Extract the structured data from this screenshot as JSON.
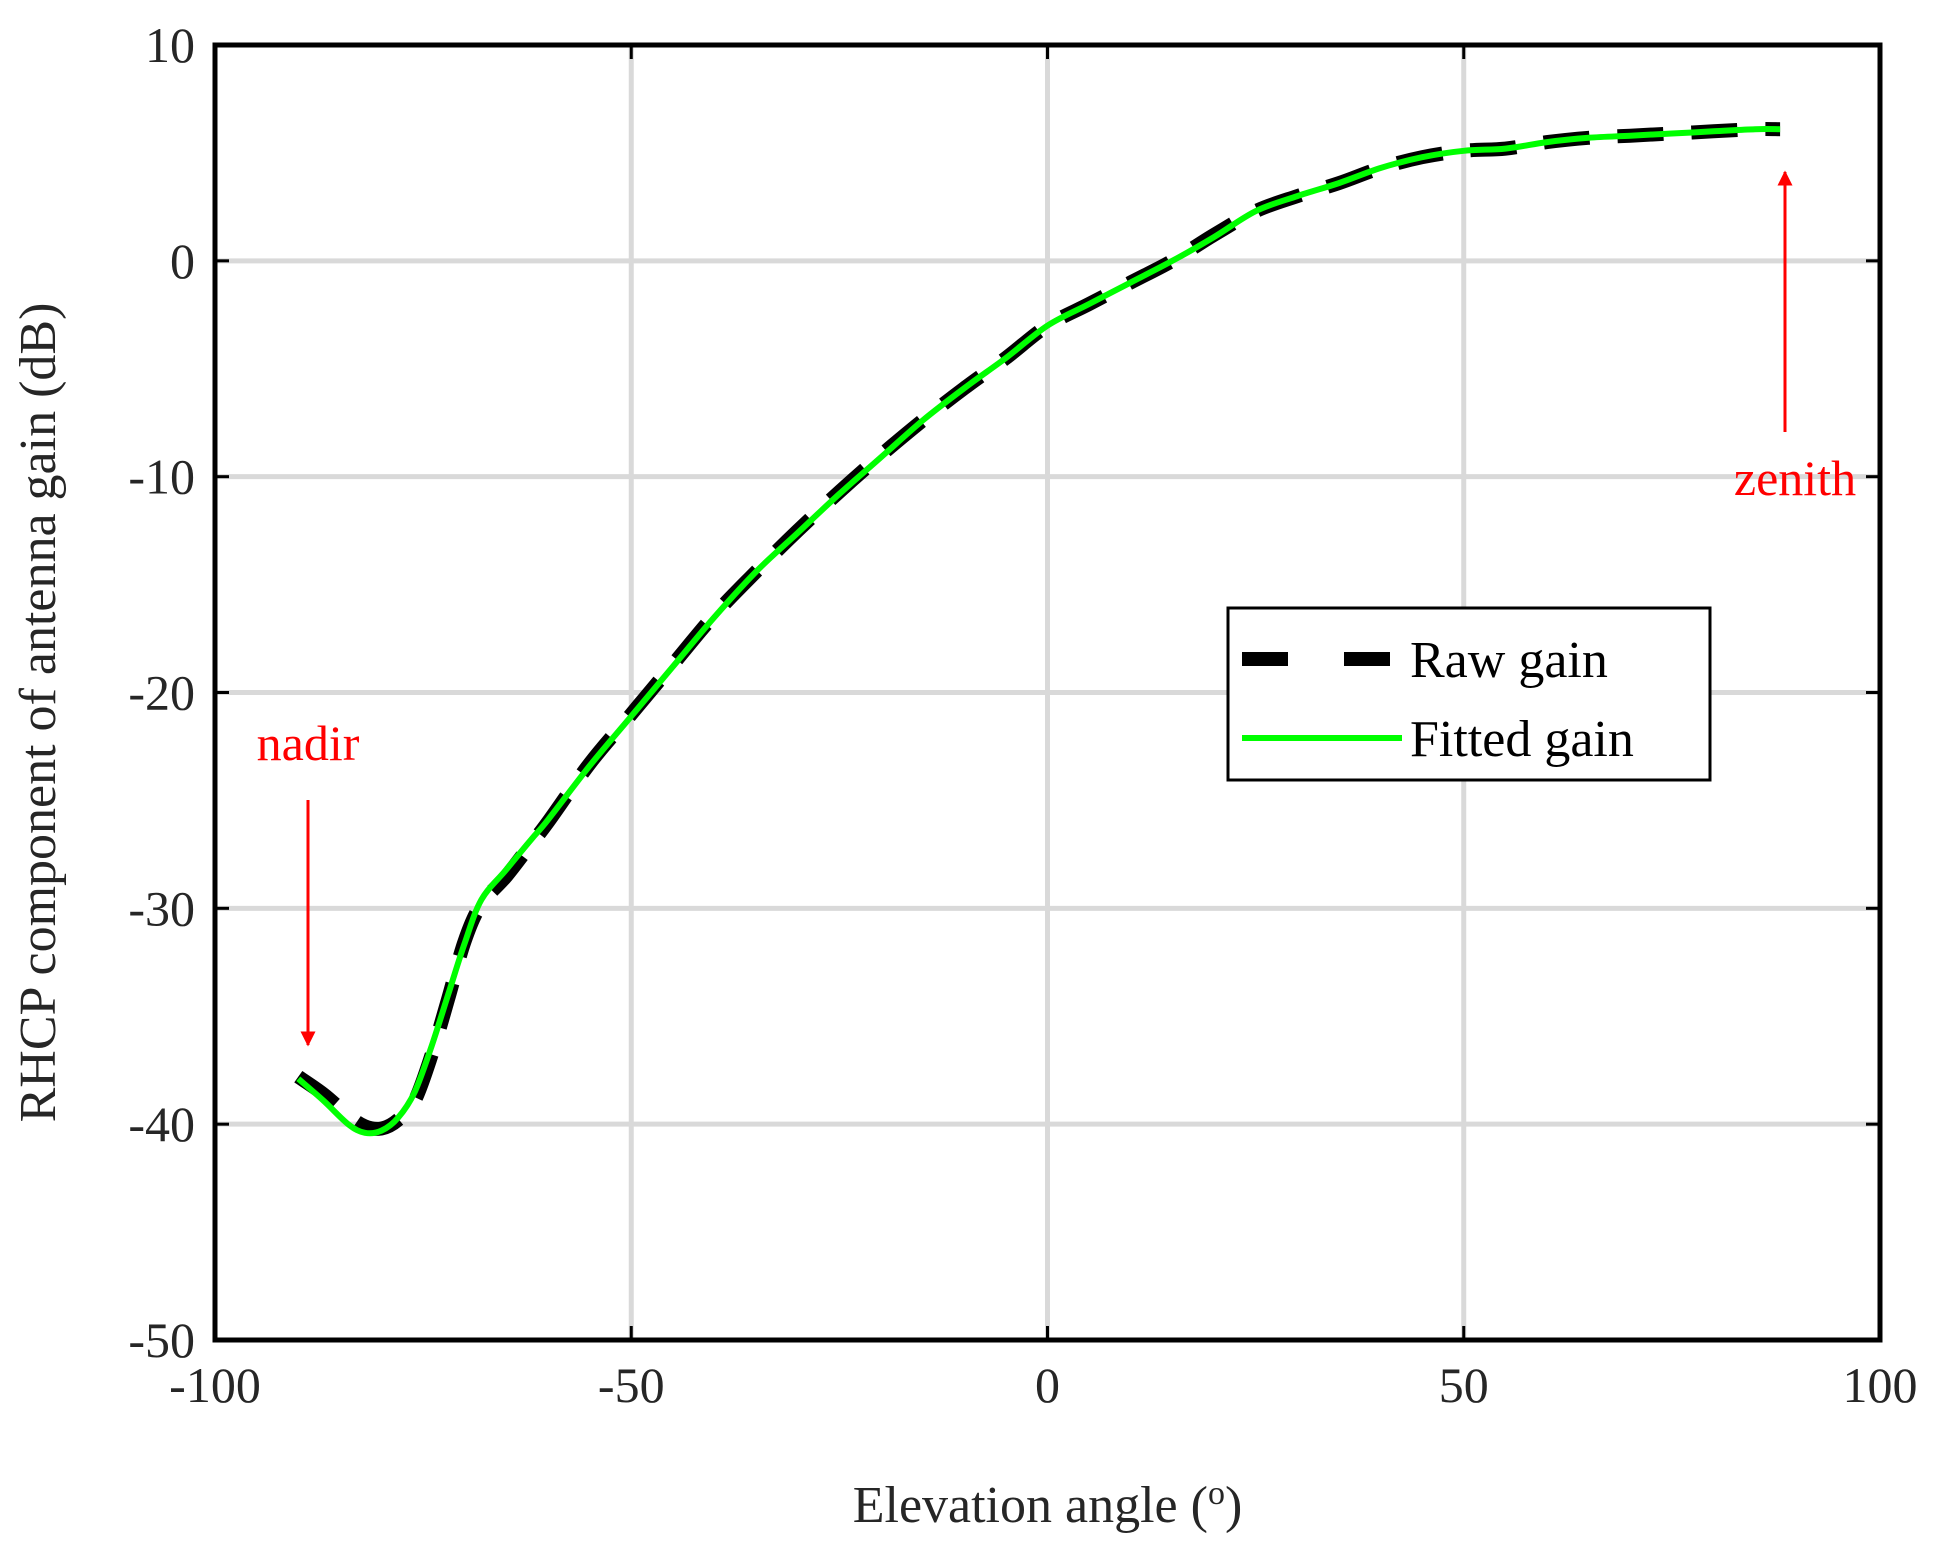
{
  "chart_data": {
    "type": "line",
    "xlabel": "Elevation angle (",
    "xlabel_sup": "o",
    "xlabel_end": ")",
    "ylabel": "RHCP component of antenna gain (dB)",
    "xlim": [
      -100,
      100
    ],
    "ylim": [
      -50,
      10
    ],
    "xticks": [
      -100,
      -50,
      0,
      50,
      100
    ],
    "yticks": [
      -50,
      -40,
      -30,
      -20,
      -10,
      0,
      10
    ],
    "xtick_labels": [
      "-100",
      "-50",
      "0",
      "50",
      "100"
    ],
    "ytick_labels": [
      "-50",
      "-40",
      "-30",
      "-20",
      "-10",
      "0",
      "10"
    ],
    "grid": true,
    "legend_position": "right-middle",
    "series": [
      {
        "name": "Raw gain",
        "style": "dashed",
        "color": "#000000",
        "x": [
          -90,
          -87,
          -84,
          -82,
          -80,
          -78,
          -76,
          -74,
          -72,
          -70,
          -68,
          -65,
          -62,
          -60,
          -55,
          -50,
          -45,
          -40,
          -35,
          -30,
          -25,
          -20,
          -15,
          -10,
          -5,
          0,
          5,
          10,
          15,
          20,
          25,
          30,
          35,
          40,
          45,
          50,
          55,
          60,
          65,
          70,
          75,
          80,
          85,
          88
        ],
        "y": [
          -37.8,
          -38.6,
          -39.6,
          -40.1,
          -40.2,
          -39.8,
          -38.9,
          -36.8,
          -34.2,
          -31.5,
          -29.8,
          -28.5,
          -27.0,
          -26.0,
          -23.3,
          -21.0,
          -18.7,
          -16.4,
          -14.4,
          -12.5,
          -10.7,
          -9.0,
          -7.4,
          -5.9,
          -4.5,
          -3.0,
          -2.0,
          -1.0,
          0.0,
          1.2,
          2.3,
          3.0,
          3.6,
          4.3,
          4.8,
          5.1,
          5.2,
          5.5,
          5.7,
          5.8,
          5.9,
          6.0,
          6.1,
          6.1
        ]
      },
      {
        "name": "Fitted gain",
        "style": "solid",
        "color": "#00ff00",
        "x": [
          -90,
          -87,
          -84,
          -82,
          -80,
          -78,
          -76,
          -74,
          -72,
          -70,
          -68,
          -65,
          -62,
          -60,
          -55,
          -50,
          -45,
          -40,
          -35,
          -30,
          -25,
          -20,
          -15,
          -10,
          -5,
          0,
          5,
          10,
          15,
          20,
          25,
          30,
          35,
          40,
          45,
          50,
          55,
          60,
          65,
          70,
          75,
          80,
          85,
          88
        ],
        "y": [
          -37.9,
          -38.9,
          -40.0,
          -40.4,
          -40.3,
          -39.7,
          -38.5,
          -36.4,
          -34.0,
          -31.6,
          -29.6,
          -28.2,
          -26.8,
          -25.9,
          -23.4,
          -21.1,
          -18.8,
          -16.5,
          -14.4,
          -12.6,
          -10.8,
          -9.1,
          -7.4,
          -5.9,
          -4.5,
          -3.0,
          -2.0,
          -1.0,
          0.0,
          1.1,
          2.3,
          3.0,
          3.6,
          4.3,
          4.8,
          5.1,
          5.2,
          5.5,
          5.7,
          5.8,
          5.9,
          6.0,
          6.1,
          6.1
        ]
      }
    ],
    "annotations": [
      {
        "text": "nadir",
        "color": "#ff0000",
        "points_to": [
          -89,
          -37.5
        ]
      },
      {
        "text": "zenith",
        "color": "#ff0000",
        "points_to": [
          88,
          6.0
        ]
      }
    ]
  }
}
